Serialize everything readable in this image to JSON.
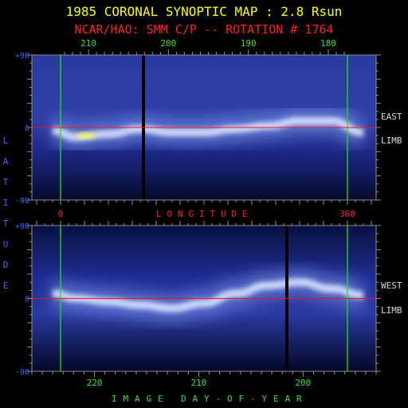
{
  "title": "1985 CORONAL SYNOPTIC MAP : 2.8 Rsun",
  "subtitle": "NCAR/HAO: SMM C/P -- ROTATION # 1764",
  "colors": {
    "title": "#ffff00",
    "subtitle": "#ff2020",
    "axis_text": "#3a6bff",
    "day_text": "#30e030",
    "longitude_text": "#ff2020",
    "side_text": "#d8d8d8",
    "marker_green": "#20e020",
    "equator_red": "#ff1010",
    "frame": "#909090"
  },
  "side_labels": {
    "east": "EAST",
    "west": "WEST",
    "limb_top": "LIMB",
    "limb_bottom": "LIMB"
  },
  "latitude_label": "LATITUDE",
  "longitude_label": "LONGITUDE",
  "day_label": "IMAGE DAY-OF-YEAR",
  "chart_data": [
    {
      "type": "heatmap",
      "panel": "east-limb",
      "x_axis": {
        "label": "LONGITUDE",
        "range": [
          0,
          360
        ],
        "tick_labels": [
          "0",
          "360"
        ],
        "tick_values": [
          0,
          360
        ]
      },
      "top_axis": {
        "range": [
          213.5,
          177.6
        ],
        "tick_labels": [
          "210",
          "200",
          "190",
          "180"
        ],
        "tick_values": [
          210,
          200,
          190,
          180
        ]
      },
      "y_axis": {
        "label": "LATITUDE",
        "range": [
          -90,
          90
        ],
        "tick_labels": [
          "+90",
          "0",
          "-90"
        ],
        "tick_values": [
          90,
          0,
          -90
        ]
      },
      "markers": {
        "green_longitudes": [
          0,
          360
        ],
        "equator_latitude": 0,
        "data_gap_days": [
          199.5
        ]
      },
      "streamer_belt": {
        "longitude": [
          -10,
          20,
          60,
          100,
          140,
          180,
          220,
          260,
          300,
          340,
          380
        ],
        "latitude": [
          -4,
          -12,
          -8,
          -2,
          -6,
          -6,
          -2,
          2,
          8,
          8,
          -6
        ]
      }
    },
    {
      "type": "heatmap",
      "panel": "west-limb",
      "x_axis": {
        "label": "IMAGE DAY-OF-YEAR",
        "range": [
          226,
          193
        ],
        "tick_labels": [
          "220",
          "210",
          "200"
        ],
        "tick_values": [
          220,
          210,
          200
        ]
      },
      "y_axis": {
        "label": "LATITUDE",
        "range": [
          -90,
          90
        ],
        "tick_labels": [
          "+90",
          "0",
          "-90"
        ],
        "tick_values": [
          90,
          0,
          -90
        ]
      },
      "markers": {
        "green_longitudes": [
          0,
          360
        ],
        "equator_latitude": 0,
        "data_gap_days": [
          199.5
        ]
      },
      "streamer_belt": {
        "longitude": [
          -10,
          20,
          60,
          100,
          140,
          180,
          220,
          260,
          300,
          340,
          380
        ],
        "latitude": [
          6,
          0,
          -4,
          -8,
          -12,
          -6,
          6,
          16,
          20,
          12,
          4
        ]
      }
    }
  ]
}
